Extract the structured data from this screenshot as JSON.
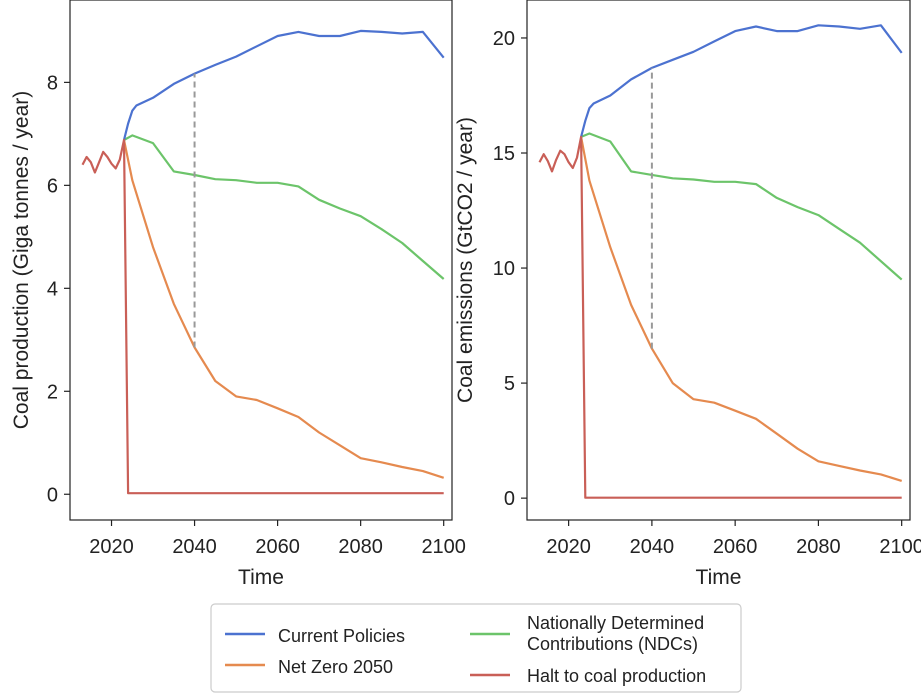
{
  "chart_data": [
    {
      "type": "line",
      "xlabel": "Time",
      "ylabel": "Coal production (Giga tonnes / year)",
      "xlim": [
        2010,
        2102
      ],
      "ylim": [
        -0.5,
        9.6
      ],
      "xticks": [
        2020,
        2040,
        2060,
        2080,
        2100
      ],
      "xtick_labels": [
        "2020",
        "2040",
        "2060",
        "2080",
        "2100"
      ],
      "yticks": [
        0,
        2,
        4,
        6,
        8
      ],
      "ytick_labels": [
        "0",
        "2",
        "4",
        "6",
        "8"
      ],
      "grid": false,
      "series": [
        {
          "name": "Current Policies",
          "color": "#4c72d0",
          "x": [
            2023,
            2024,
            2025,
            2026,
            2030,
            2035,
            2040,
            2045,
            2050,
            2055,
            2060,
            2065,
            2070,
            2075,
            2080,
            2085,
            2090,
            2095,
            2100
          ],
          "y": [
            6.88,
            7.2,
            7.45,
            7.55,
            7.7,
            7.97,
            8.17,
            8.34,
            8.5,
            8.7,
            8.9,
            8.98,
            8.9,
            8.9,
            9.0,
            8.98,
            8.95,
            8.98,
            8.48
          ]
        },
        {
          "name": "Net Zero 2050",
          "color": "#e58a4f",
          "x": [
            2023,
            2025,
            2030,
            2035,
            2040,
            2045,
            2050,
            2055,
            2060,
            2065,
            2070,
            2075,
            2080,
            2085,
            2090,
            2095,
            2100
          ],
          "y": [
            6.88,
            6.1,
            4.8,
            3.7,
            2.85,
            2.2,
            1.9,
            1.83,
            1.67,
            1.5,
            1.2,
            0.95,
            0.7,
            0.62,
            0.53,
            0.45,
            0.32
          ]
        },
        {
          "name": "Nationally Determined Contributions (NDCs)",
          "color": "#6cc46a",
          "x": [
            2023,
            2025,
            2030,
            2035,
            2040,
            2045,
            2050,
            2055,
            2060,
            2065,
            2070,
            2075,
            2080,
            2085,
            2090,
            2095,
            2100
          ],
          "y": [
            6.88,
            6.97,
            6.82,
            6.27,
            6.2,
            6.12,
            6.1,
            6.05,
            6.05,
            5.98,
            5.72,
            5.55,
            5.4,
            5.15,
            4.88,
            4.53,
            4.18
          ]
        },
        {
          "name": "Halt to coal production",
          "color": "#c95f57",
          "x": [
            2013,
            2014,
            2015,
            2016,
            2017,
            2018,
            2019,
            2020,
            2021,
            2022,
            2023,
            2024,
            2025,
            2100
          ],
          "y": [
            6.4,
            6.55,
            6.45,
            6.25,
            6.45,
            6.65,
            6.55,
            6.42,
            6.33,
            6.5,
            6.88,
            0.02,
            0.02,
            0.02
          ]
        }
      ],
      "annotations": [
        {
          "type": "vline",
          "x": 2040,
          "y": [
            2.85,
            8.17
          ],
          "style": "dashed",
          "color": "#999999"
        }
      ]
    },
    {
      "type": "line",
      "xlabel": "Time",
      "ylabel": "Coal emissions (GtCO2 / year)",
      "xlim": [
        2010,
        2102
      ],
      "ylim": [
        -0.95,
        21.65
      ],
      "xticks": [
        2020,
        2040,
        2060,
        2080,
        2100
      ],
      "xtick_labels": [
        "2020",
        "2040",
        "2060",
        "2080",
        "2100"
      ],
      "yticks": [
        0,
        5,
        10,
        15,
        20
      ],
      "ytick_labels": [
        "0",
        "5",
        "10",
        "15",
        "20"
      ],
      "grid": false,
      "series": [
        {
          "name": "Current Policies",
          "color": "#4c72d0",
          "x": [
            2023,
            2024,
            2025,
            2026,
            2030,
            2035,
            2040,
            2045,
            2050,
            2055,
            2060,
            2065,
            2070,
            2075,
            2080,
            2085,
            2090,
            2095,
            2100
          ],
          "y": [
            15.7,
            16.4,
            16.95,
            17.15,
            17.5,
            18.2,
            18.7,
            19.05,
            19.4,
            19.85,
            20.3,
            20.5,
            20.3,
            20.3,
            20.55,
            20.5,
            20.4,
            20.55,
            19.35
          ]
        },
        {
          "name": "Net Zero 2050",
          "color": "#e58a4f",
          "x": [
            2023,
            2025,
            2030,
            2035,
            2040,
            2045,
            2050,
            2055,
            2060,
            2065,
            2070,
            2075,
            2080,
            2085,
            2090,
            2095,
            2100
          ],
          "y": [
            15.7,
            13.8,
            10.9,
            8.4,
            6.5,
            5.0,
            4.3,
            4.15,
            3.8,
            3.45,
            2.8,
            2.15,
            1.6,
            1.4,
            1.2,
            1.03,
            0.75
          ]
        },
        {
          "name": "Nationally Determined Contributions (NDCs)",
          "color": "#6cc46a",
          "x": [
            2023,
            2025,
            2030,
            2035,
            2040,
            2045,
            2050,
            2055,
            2060,
            2065,
            2070,
            2075,
            2080,
            2085,
            2090,
            2095,
            2100
          ],
          "y": [
            15.7,
            15.85,
            15.5,
            14.2,
            14.05,
            13.9,
            13.85,
            13.75,
            13.75,
            13.65,
            13.05,
            12.65,
            12.3,
            11.7,
            11.1,
            10.3,
            9.5
          ]
        },
        {
          "name": "Halt to coal production",
          "color": "#c95f57",
          "x": [
            2013,
            2014,
            2015,
            2016,
            2017,
            2018,
            2019,
            2020,
            2021,
            2022,
            2023,
            2024,
            2025,
            2100
          ],
          "y": [
            14.6,
            14.95,
            14.65,
            14.2,
            14.7,
            15.1,
            14.95,
            14.6,
            14.35,
            14.8,
            15.7,
            0.02,
            0.02,
            0.02
          ]
        }
      ],
      "annotations": [
        {
          "type": "vline",
          "x": 2040,
          "y": [
            6.5,
            18.7
          ],
          "style": "dashed",
          "color": "#999999"
        }
      ]
    }
  ],
  "legend": {
    "placement": "bottom-center",
    "entries": [
      {
        "lines": [
          "Current Policies"
        ],
        "color": "#4c72d0"
      },
      {
        "lines": [
          "Net Zero 2050"
        ],
        "color": "#e58a4f"
      },
      {
        "lines": [
          "Nationally Determined",
          "Contributions (NDCs)"
        ],
        "color": "#6cc46a"
      },
      {
        "lines": [
          "Halt to coal production"
        ],
        "color": "#c95f57"
      }
    ]
  }
}
